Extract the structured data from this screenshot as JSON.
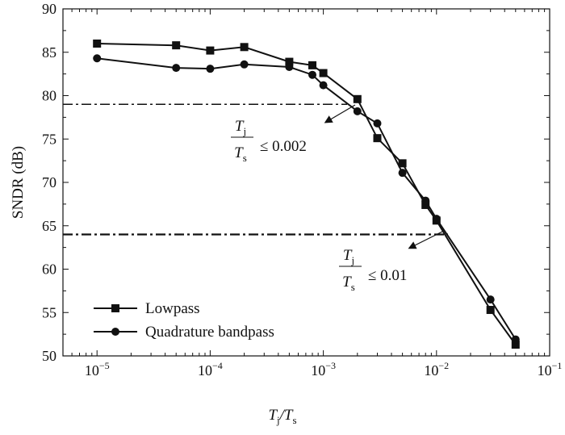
{
  "chart_data": {
    "type": "line",
    "xscale": "log",
    "xlim": [
      5e-06,
      0.1
    ],
    "ylim": [
      50,
      90
    ],
    "xlabel": {
      "main": "T",
      "sub1": "j",
      "sep": "/T",
      "sub2": "s"
    },
    "ylabel": "SNDR (dB)",
    "yticks": [
      50,
      55,
      60,
      65,
      70,
      75,
      80,
      85,
      90
    ],
    "ytick_labels": [
      "50",
      "55",
      "60",
      "65",
      "70",
      "75",
      "80",
      "85",
      "90"
    ],
    "xticks": [
      1e-05,
      0.0001,
      0.001,
      0.01,
      0.1
    ],
    "xtick_labels": [
      {
        "base": "10",
        "exp": "−5"
      },
      {
        "base": "10",
        "exp": "−4"
      },
      {
        "base": "10",
        "exp": "−3"
      },
      {
        "base": "10",
        "exp": "−2"
      },
      {
        "base": "10",
        "exp": "−1"
      }
    ],
    "grid": false,
    "legend_position": "bottom-left",
    "series": [
      {
        "name": "Lowpass",
        "marker": "square",
        "x": [
          1e-05,
          5e-05,
          0.0001,
          0.0002,
          0.0005,
          0.0008,
          0.001,
          0.002,
          0.003,
          0.005,
          0.008,
          0.01,
          0.03,
          0.05
        ],
        "values": [
          86.0,
          85.8,
          85.2,
          85.6,
          83.9,
          83.5,
          82.6,
          79.6,
          75.1,
          72.2,
          67.4,
          65.6,
          55.3,
          51.3
        ]
      },
      {
        "name": "Quadrature bandpass",
        "marker": "circle",
        "x": [
          1e-05,
          5e-05,
          0.0001,
          0.0002,
          0.0005,
          0.0008,
          0.001,
          0.002,
          0.003,
          0.005,
          0.008,
          0.01,
          0.03,
          0.05
        ],
        "values": [
          84.3,
          83.2,
          83.1,
          83.6,
          83.3,
          82.4,
          81.2,
          78.2,
          76.8,
          71.1,
          67.9,
          65.8,
          56.5,
          51.9
        ]
      }
    ],
    "reference_lines": [
      {
        "y": 79.0,
        "style": "dash-dot",
        "label": {
          "num": "T",
          "num_sub": "j",
          "den": "T",
          "den_sub": "s",
          "relation": "≤ 0.002"
        }
      },
      {
        "y": 64.0,
        "style": "dash-dot",
        "label": {
          "num": "T",
          "num_sub": "j",
          "den": "T",
          "den_sub": "s",
          "relation": "≤ 0.01"
        }
      }
    ]
  }
}
